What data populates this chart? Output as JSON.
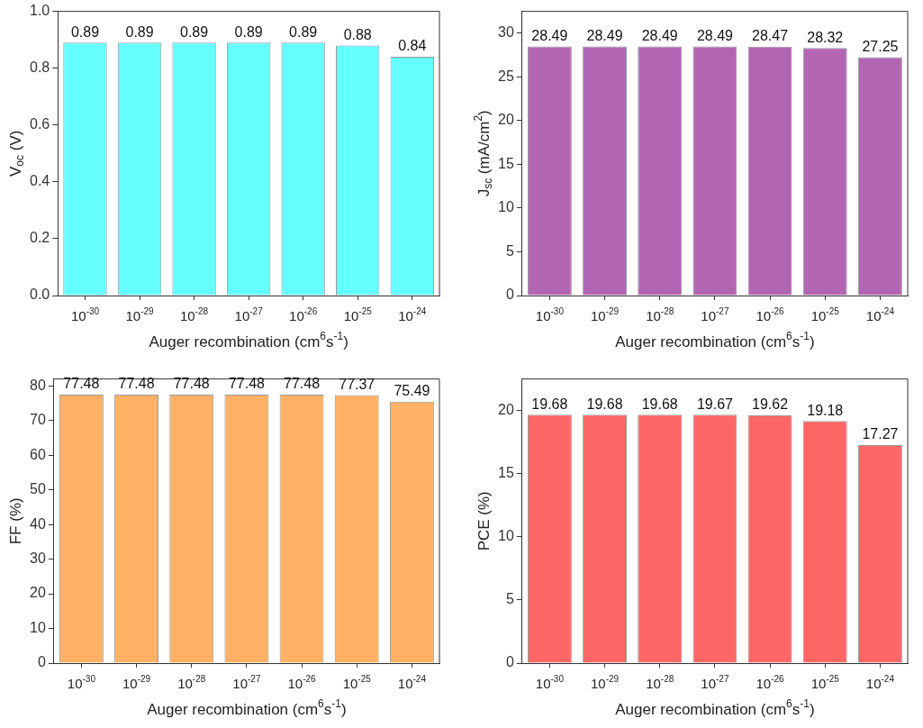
{
  "chart_data": [
    {
      "type": "bar",
      "categories": [
        "10$^{-30}$",
        "10$^{-29}$",
        "10$^{-28}$",
        "10$^{-27}$",
        "10$^{-26}$",
        "10$^{-25}$",
        "10$^{-24}$"
      ],
      "values": [
        0.89,
        0.89,
        0.89,
        0.89,
        0.89,
        0.88,
        0.84
      ],
      "color": "#66ffff",
      "xlabel": "Auger recombination (cm$^{6}$s$^{-1}$)",
      "ylabel": "V$_{oc}$ (V)",
      "ylim": [
        0,
        1
      ],
      "yticks": [
        {
          "value": 0,
          "label": "0.0"
        },
        {
          "value": 0.2,
          "label": "0.2"
        },
        {
          "value": 0.4,
          "label": "0.4"
        },
        {
          "value": 0.6,
          "label": "0.6"
        },
        {
          "value": 0.8,
          "label": "0.8"
        },
        {
          "value": 1,
          "label": "1.0"
        }
      ],
      "data_labels": true
    },
    {
      "type": "bar",
      "categories": [
        "10$^{-30}$",
        "10$^{-29}$",
        "10$^{-28}$",
        "10$^{-27}$",
        "10$^{-26}$",
        "10$^{-25}$",
        "10$^{-24}$"
      ],
      "values": [
        28.49,
        28.49,
        28.49,
        28.49,
        28.47,
        28.32,
        27.25
      ],
      "color": "#b266b2",
      "xlabel": "Auger recombination (cm$^{6}$s$^{-1}$)",
      "ylabel": "J$_{sc}$ (mA/cm$^{2}$)",
      "ylim": [
        0,
        32.5
      ],
      "yticks": [
        0,
        5,
        10,
        15,
        20,
        25,
        30
      ],
      "data_labels": true
    },
    {
      "type": "bar",
      "categories": [
        "10$^{-30}$",
        "10$^{-29}$",
        "10$^{-28}$",
        "10$^{-27}$",
        "10$^{-26}$",
        "10$^{-25}$",
        "10$^{-24}$"
      ],
      "values": [
        77.48,
        77.48,
        77.48,
        77.48,
        77.48,
        77.37,
        75.49
      ],
      "color": "#ffb266",
      "xlabel": "Auger recombination (cm$^{6}$s$^{-1}$)",
      "ylabel": "FF (%)",
      "ylim": [
        0,
        82
      ],
      "yticks": [
        0,
        10,
        20,
        30,
        40,
        50,
        60,
        70,
        80
      ],
      "data_labels": true
    },
    {
      "type": "bar",
      "categories": [
        "10$^{-30}$",
        "10$^{-29}$",
        "10$^{-28}$",
        "10$^{-27}$",
        "10$^{-26}$",
        "10$^{-25}$",
        "10$^{-24}$"
      ],
      "values": [
        19.68,
        19.68,
        19.68,
        19.67,
        19.62,
        19.18,
        17.27
      ],
      "color": "#ff6666",
      "xlabel": "Auger recombination (cm$^{6}$s$^{-1}$)",
      "ylabel": "PCE (%)",
      "ylim": [
        0,
        22.5
      ],
      "yticks": [
        0,
        5,
        10,
        15,
        20
      ],
      "data_labels": true
    }
  ]
}
